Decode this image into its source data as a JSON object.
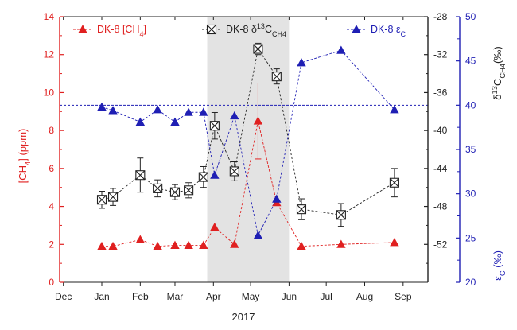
{
  "chart_data": {
    "type": "scatter",
    "xlabel": "2017",
    "x_ticks": [
      "Dec",
      "Jan",
      "Feb",
      "Mar",
      "Apr",
      "May",
      "Jun",
      "Jul",
      "Aug",
      "Sep"
    ],
    "shaded_region": {
      "from": "2017-03-27",
      "to": "2017-06-01",
      "color": "#e3e3e3"
    },
    "axes": {
      "y_left": {
        "label_parts": [
          "[CH",
          "4",
          "] (ppm)"
        ],
        "range": [
          0,
          14
        ],
        "ticks": [
          "0",
          "2",
          "4",
          "6",
          "8",
          "10",
          "12",
          "14"
        ],
        "color": "#e02020"
      },
      "y_right_inner": {
        "label_parts": [
          "δ",
          "13",
          "C",
          "CH4",
          "(‰)"
        ],
        "range": [
          -56,
          -28
        ],
        "ticks": [
          "-52",
          "-48",
          "-44",
          "-40",
          "-36",
          "-32",
          "-28"
        ],
        "color": "#222222"
      },
      "y_right_outer": {
        "label_parts": [
          "ε",
          "C",
          " (‰)"
        ],
        "range": [
          20,
          50
        ],
        "ticks": [
          "20",
          "25",
          "30",
          "35",
          "40",
          "45",
          "50"
        ],
        "color": "#1f1fb4"
      }
    },
    "reference_line": {
      "axis": "y_right_outer",
      "value": 40,
      "color": "#1f1fb4"
    },
    "series": [
      {
        "name_parts": [
          "DK-8 [CH",
          "4",
          "]"
        ],
        "axis": "y_left",
        "color": "#e02020",
        "marker": "triangle",
        "points": [
          {
            "x": "2017-01-01",
            "y": 1.9
          },
          {
            "x": "2017-01-10",
            "y": 1.9
          },
          {
            "x": "2017-02-01",
            "y": 2.25
          },
          {
            "x": "2017-02-15",
            "y": 1.9
          },
          {
            "x": "2017-03-01",
            "y": 1.95
          },
          {
            "x": "2017-03-12",
            "y": 1.95
          },
          {
            "x": "2017-03-24",
            "y": 1.95
          },
          {
            "x": "2017-04-02",
            "y": 2.9
          },
          {
            "x": "2017-04-18",
            "y": 2.0
          },
          {
            "x": "2017-05-07",
            "y": 8.5,
            "err": 2.0
          },
          {
            "x": "2017-05-22",
            "y": 4.2
          },
          {
            "x": "2017-06-11",
            "y": 1.9
          },
          {
            "x": "2017-07-13",
            "y": 2.0
          },
          {
            "x": "2017-08-25",
            "y": 2.1
          }
        ]
      },
      {
        "name_parts": [
          "DK-8 δ",
          "13",
          "C",
          "CH4",
          ""
        ],
        "axis": "y_right_inner",
        "color": "#222222",
        "marker": "cross-square",
        "points": [
          {
            "x": "2017-01-01",
            "y": -47.3,
            "err": 0.9
          },
          {
            "x": "2017-01-10",
            "y": -47.0,
            "err": 0.9
          },
          {
            "x": "2017-02-01",
            "y": -44.7,
            "err": 1.8
          },
          {
            "x": "2017-02-15",
            "y": -46.1,
            "err": 0.9
          },
          {
            "x": "2017-03-01",
            "y": -46.5,
            "err": 0.8
          },
          {
            "x": "2017-03-12",
            "y": -46.3,
            "err": 0.8
          },
          {
            "x": "2017-03-24",
            "y": -44.9,
            "err": 1.1
          },
          {
            "x": "2017-04-02",
            "y": -39.5,
            "err": 1.4
          },
          {
            "x": "2017-04-18",
            "y": -44.3,
            "err": 1.0
          },
          {
            "x": "2017-05-07",
            "y": -31.4,
            "err": 0.6
          },
          {
            "x": "2017-05-22",
            "y": -34.3,
            "err": 0.8
          },
          {
            "x": "2017-06-11",
            "y": -48.3,
            "err": 1.1
          },
          {
            "x": "2017-07-13",
            "y": -48.9,
            "err": 1.2
          },
          {
            "x": "2017-08-25",
            "y": -45.5,
            "err": 1.5
          }
        ]
      },
      {
        "name_parts": [
          "DK-8 ε",
          "C",
          ""
        ],
        "axis": "y_right_outer",
        "color": "#1f1fb4",
        "marker": "triangle",
        "points": [
          {
            "x": "2017-01-01",
            "y": 39.8
          },
          {
            "x": "2017-01-10",
            "y": 39.4
          },
          {
            "x": "2017-02-01",
            "y": 38.1
          },
          {
            "x": "2017-02-15",
            "y": 39.5
          },
          {
            "x": "2017-03-01",
            "y": 38.1
          },
          {
            "x": "2017-03-12",
            "y": 39.2
          },
          {
            "x": "2017-03-24",
            "y": 39.2
          },
          {
            "x": "2017-04-02",
            "y": 32.1
          },
          {
            "x": "2017-04-18",
            "y": 38.8
          },
          {
            "x": "2017-05-07",
            "y": 25.3
          },
          {
            "x": "2017-05-22",
            "y": 29.4
          },
          {
            "x": "2017-06-11",
            "y": 44.8
          },
          {
            "x": "2017-07-13",
            "y": 46.2
          },
          {
            "x": "2017-08-25",
            "y": 39.5
          }
        ]
      }
    ]
  }
}
